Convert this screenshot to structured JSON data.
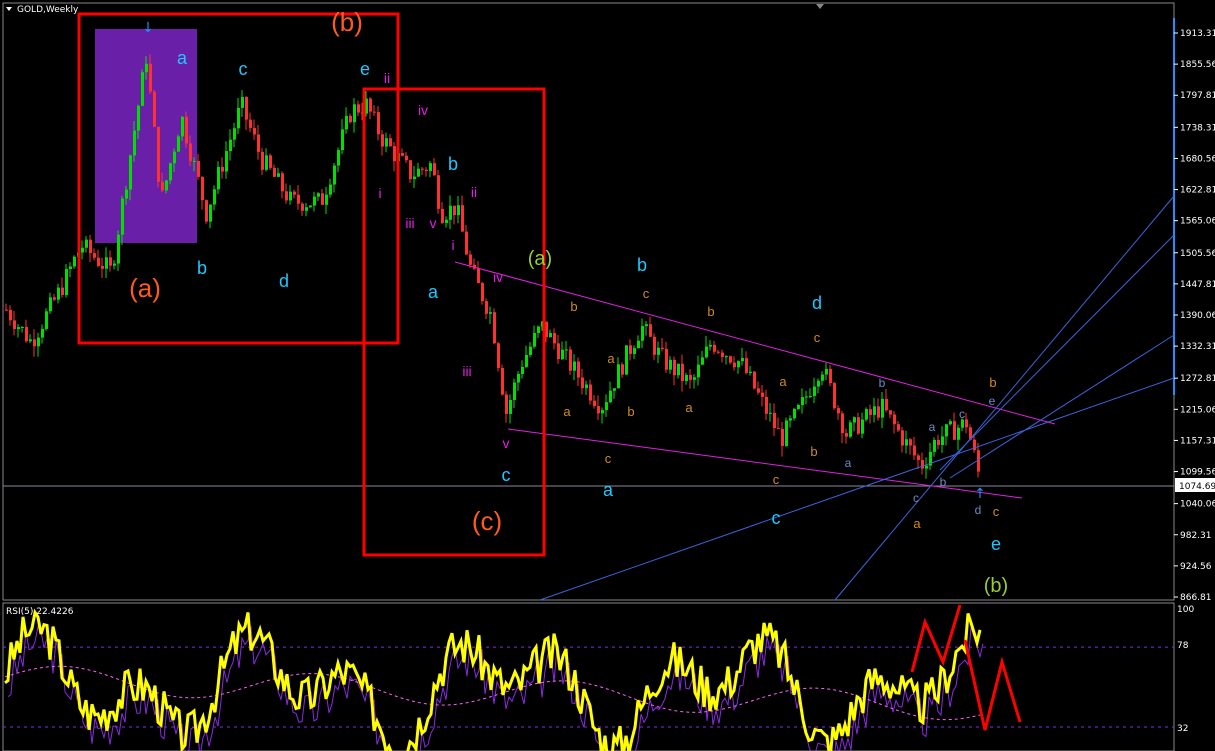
{
  "header": {
    "title": "GOLD,Weekly"
  },
  "chart_data": {
    "type": "candlestick",
    "symbol": "GOLD",
    "timeframe": "Weekly",
    "ylim": [
      866.81,
      1913.31
    ],
    "y_ticks": [
      "1913.31",
      "1855.56",
      "1797.81",
      "1738.31",
      "1680.56",
      "1622.81",
      "1565.06",
      "1505.56",
      "1447.81",
      "1390.06",
      "1332.31",
      "1272.81",
      "1215.06",
      "1157.31",
      "1099.56",
      "1040.06",
      "982.31",
      "924.56",
      "866.81"
    ],
    "current_price": "1074.69",
    "price_path": [
      1400,
      1340,
      1440,
      1520,
      1470,
      1700,
      1870,
      1600,
      1760,
      1580,
      1780,
      1680,
      1600,
      1600,
      1770,
      1780,
      1720,
      1650,
      1670,
      1580,
      1590,
      1470,
      1390,
      1210,
      1300,
      1370,
      1320,
      1220,
      1370,
      1310,
      1260,
      1340,
      1300,
      1160,
      1220,
      1300,
      1170,
      1220,
      1110,
      1160,
      1190,
      1074.69
    ],
    "wave_labels": [
      {
        "text": "(a)",
        "color": "#ff5a1e"
      },
      {
        "text": "(b)",
        "color": "#ff5a1e"
      },
      {
        "text": "(c)",
        "color": "#ff5a1e"
      },
      {
        "text": "a",
        "color": "#1ec8ff"
      },
      {
        "text": "b",
        "color": "#1ec8ff"
      },
      {
        "text": "c",
        "color": "#1ec8ff"
      },
      {
        "text": "d",
        "color": "#1ec8ff"
      },
      {
        "text": "e",
        "color": "#1ec8ff"
      },
      {
        "text": "ii",
        "color": "#e020e0"
      },
      {
        "text": "iv",
        "color": "#e020e0"
      },
      {
        "text": "i",
        "color": "#e020e0"
      },
      {
        "text": "iii",
        "color": "#e020e0"
      },
      {
        "text": "v",
        "color": "#e020e0"
      },
      {
        "text": "b",
        "color": "#1ec8ff"
      },
      {
        "text": "ii",
        "color": "#e020e0"
      },
      {
        "text": "i",
        "color": "#e020e0"
      },
      {
        "text": "a",
        "color": "#1ec8ff"
      },
      {
        "text": "iv",
        "color": "#e020e0"
      },
      {
        "text": "iii",
        "color": "#e020e0"
      },
      {
        "text": "v",
        "color": "#e020e0"
      },
      {
        "text": "c",
        "color": "#1ec8ff"
      },
      {
        "text": "(a)",
        "color": "#9acd32"
      },
      {
        "text": "b",
        "color": "#1ec8ff"
      },
      {
        "text": "d",
        "color": "#1ec8ff"
      },
      {
        "text": "a",
        "color": "#1ec8ff"
      },
      {
        "text": "c",
        "color": "#1ec8ff"
      },
      {
        "text": "e",
        "color": "#1ec8ff"
      },
      {
        "text": "(b)",
        "color": "#9acd32"
      },
      {
        "text": "b",
        "color": "#d08c1e"
      },
      {
        "text": "c",
        "color": "#d08c1e"
      },
      {
        "text": "b",
        "color": "#d08c1e"
      },
      {
        "text": "c",
        "color": "#d08c1e"
      },
      {
        "text": "a",
        "color": "#d08c1e"
      },
      {
        "text": "a",
        "color": "#d08c1e"
      },
      {
        "text": "b",
        "color": "#d08c1e"
      },
      {
        "text": "c",
        "color": "#d08c1e"
      },
      {
        "text": "a",
        "color": "#d08c1e"
      },
      {
        "text": "a",
        "color": "#d08c1e"
      },
      {
        "text": "b",
        "color": "#d08c1e"
      },
      {
        "text": "c",
        "color": "#d08c1e"
      },
      {
        "text": "a",
        "color": "#d08c1e"
      },
      {
        "text": "b",
        "color": "#d08c1e"
      },
      {
        "text": "c",
        "color": "#d08c1e"
      },
      {
        "text": "b",
        "color": "#6a8cc8"
      },
      {
        "text": "a",
        "color": "#6a8cc8"
      },
      {
        "text": "a",
        "color": "#6a8cc8"
      },
      {
        "text": "c",
        "color": "#6a8cc8"
      },
      {
        "text": "c",
        "color": "#6a8cc8"
      },
      {
        "text": "b",
        "color": "#6a8cc8"
      },
      {
        "text": "e",
        "color": "#6a8cc8"
      },
      {
        "text": "d",
        "color": "#6a8cc8"
      }
    ],
    "indicator": {
      "label": "RSI(5) 22.4226",
      "levels": [
        "100",
        "78",
        "32"
      ]
    },
    "colors": {
      "up": "#00e000",
      "down": "#ff3030",
      "rsi": "#ffff00",
      "box": "#ff0000",
      "highlight": "#6a1fa8",
      "trend_magenta": "#e020e0",
      "trend_blue": "#3c64dc"
    }
  }
}
